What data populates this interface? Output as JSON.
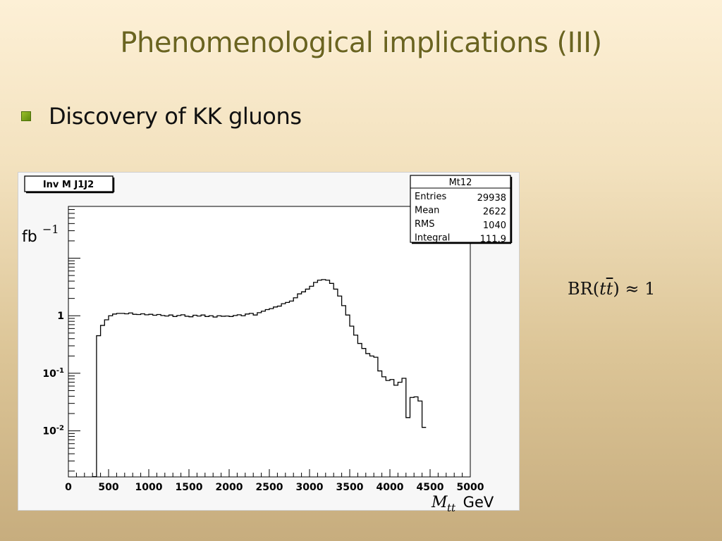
{
  "slide": {
    "title": "Phenomenological implications (III)",
    "bullet": "Discovery of KK gluons",
    "formula": {
      "prefix": "BR(",
      "t1": "t",
      "t2": "t",
      "suffix": ") ≈ 1"
    }
  },
  "colors": {
    "title": "#6b6420",
    "bullet": "#7aa418",
    "line": "#000000"
  },
  "chart_data": {
    "type": "line",
    "title": "Inv M J1J2",
    "stats_box": {
      "name": "Mt12",
      "rows": [
        {
          "label": "Entries",
          "value": "29938"
        },
        {
          "label": "Mean",
          "value": "2622"
        },
        {
          "label": "RMS",
          "value": "1040"
        },
        {
          "label": "Integral",
          "value": "111.9"
        }
      ]
    },
    "ylabel": "fb",
    "ylabel_exponent": "−1",
    "xlabel_var": "M",
    "xlabel_sub": "tt",
    "xlabel_unit": " GeV",
    "xlim": [
      0,
      5000
    ],
    "ylim_log10": [
      -2.8,
      1.9
    ],
    "y_scale": "log",
    "x_ticks": [
      {
        "value": 0,
        "label": "0"
      },
      {
        "value": 500,
        "label": "500"
      },
      {
        "value": 1000,
        "label": "1000"
      },
      {
        "value": 1500,
        "label": "1500"
      },
      {
        "value": 2000,
        "label": "2000"
      },
      {
        "value": 2500,
        "label": "2500"
      },
      {
        "value": 3000,
        "label": "3000"
      },
      {
        "value": 3500,
        "label": "3500"
      },
      {
        "value": 4000,
        "label": "4000"
      },
      {
        "value": 4500,
        "label": "4500"
      },
      {
        "value": 5000,
        "label": "5000"
      }
    ],
    "y_ticks": [
      {
        "value": 1,
        "label": "1"
      },
      {
        "value": 0.1,
        "label": "10",
        "exp": "-1"
      },
      {
        "value": 0.01,
        "label": "10",
        "exp": "-2"
      }
    ],
    "bin_width": 50,
    "bins_start": 300,
    "values": [
      0.0016,
      0.45,
      0.68,
      0.85,
      1.0,
      1.07,
      1.1,
      1.1,
      1.08,
      1.12,
      1.06,
      1.05,
      1.08,
      1.04,
      1.06,
      1.02,
      1.05,
      1.01,
      0.99,
      1.03,
      0.97,
      1.01,
      1.04,
      0.98,
      0.96,
      1.02,
      0.99,
      1.03,
      0.97,
      1.0,
      0.95,
      1.0,
      0.98,
      0.99,
      0.97,
      1.01,
      1.04,
      1.0,
      1.07,
      1.1,
      1.03,
      1.13,
      1.2,
      1.28,
      1.33,
      1.42,
      1.47,
      1.62,
      1.7,
      1.8,
      2.05,
      2.4,
      2.6,
      2.9,
      3.25,
      3.8,
      4.15,
      4.25,
      4.15,
      3.65,
      2.9,
      2.2,
      1.5,
      1.03,
      0.66,
      0.46,
      0.33,
      0.27,
      0.22,
      0.2,
      0.19,
      0.11,
      0.087,
      0.075,
      0.078,
      0.062,
      0.07,
      0.082,
      0.017,
      0.038,
      0.039,
      0.033,
      0.0115
    ]
  }
}
